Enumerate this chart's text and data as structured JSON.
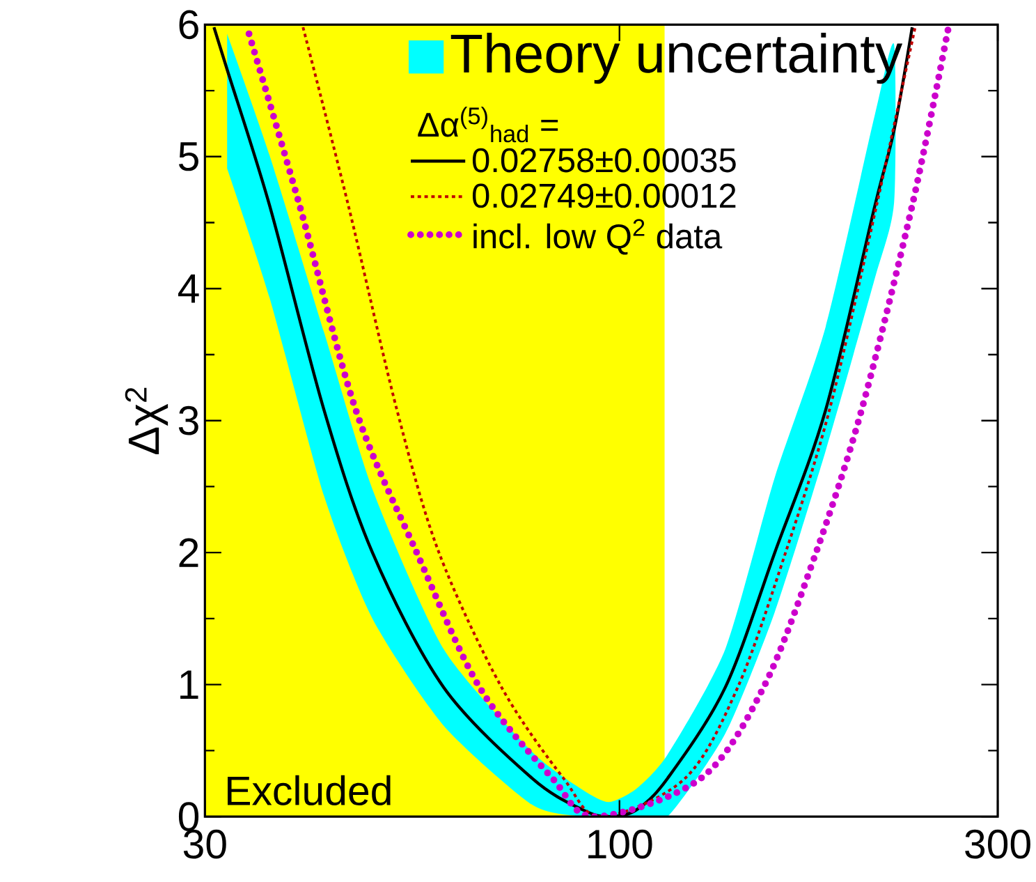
{
  "chart_data": {
    "type": "line",
    "ylabel": "Δχ$^{2}$",
    "legend_title": "Δα$^{(5)}$$_{had}$ =",
    "log": "x",
    "xlim": [
      30,
      300
    ],
    "xticks": [
      30,
      100,
      300
    ],
    "ylim": [
      0,
      6
    ],
    "yticks": [
      0,
      1,
      2,
      3,
      4,
      5,
      6
    ],
    "legend": "top right",
    "annotations": [
      "Theory uncertainty"
    ],
    "bands": [
      {
        "axis": "x",
        "from": 30,
        "to": 114,
        "label": "Excluded",
        "color": "#ffff00"
      }
    ],
    "series": [
      {
        "name": "0.02758±0.00035",
        "color": "#000000",
        "line_style": "solid",
        "x": [
          30.8,
          32,
          36.2,
          42.4,
          48.8,
          60,
          77.6,
          90,
          97,
          105,
          115,
          136,
          157,
          182,
          210,
          222,
          234
        ],
        "values": [
          5.98,
          5.66,
          4.63,
          3.08,
          2.0,
          0.98,
          0.29,
          0.05,
          0,
          0.05,
          0.29,
          0.98,
          2.0,
          3.08,
          4.63,
          5.2,
          5.98
        ],
        "lower": [
          null,
          4.91,
          3.93,
          2.43,
          1.5,
          0.69,
          0.09,
          0,
          0,
          0,
          0,
          0.63,
          1.55,
          2.77,
          4.08,
          4.65,
          null
        ],
        "upper": [
          null,
          5.93,
          5.01,
          3.67,
          2.48,
          1.27,
          0.49,
          0.2,
          0.11,
          0.21,
          0.47,
          1.27,
          2.57,
          3.71,
          5.32,
          5.85,
          null
        ]
      },
      {
        "name": "0.02749±0.00012",
        "color": "#c00000",
        "line_style": "dashed",
        "x": [
          39.9,
          45.5,
          52.4,
          59.2,
          71,
          85,
          94.9,
          121,
          141,
          162,
          184,
          211,
          236
        ],
        "values": [
          5.98,
          4.63,
          3.08,
          2.0,
          0.98,
          0.29,
          0,
          0.29,
          0.98,
          2.0,
          3.08,
          4.63,
          5.98
        ]
      },
      {
        "name": "incl. low Q$^{2}$ data",
        "color": "#cc00cc",
        "line_style": "dotted",
        "x": [
          34.1,
          39.5,
          46.5,
          55.5,
          66.6,
          82.3,
          93.2,
          126.7,
          152,
          177,
          202,
          234,
          260
        ],
        "values": [
          5.93,
          4.63,
          3.08,
          2.0,
          0.98,
          0.29,
          0,
          0.29,
          0.98,
          2.0,
          3.08,
          4.63,
          5.98
        ]
      }
    ]
  }
}
